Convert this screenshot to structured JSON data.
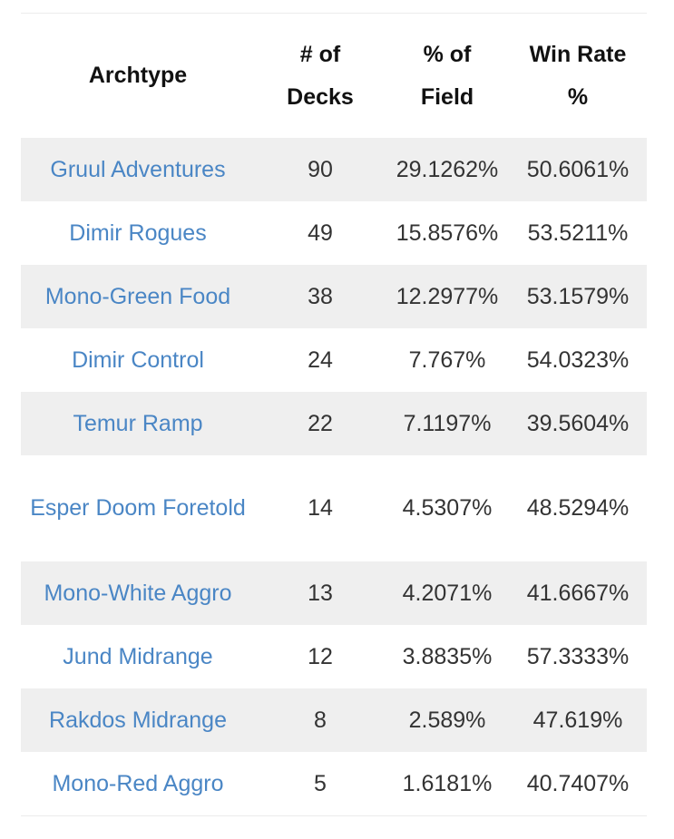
{
  "table": {
    "headers": {
      "archetype": "Archtype",
      "decks_line1": "# of",
      "decks_line2": "Decks",
      "field_line1": "% of",
      "field_line2": "Field",
      "winrate_line1": "Win Rate",
      "winrate_line2": "%"
    },
    "rows": [
      {
        "name": "Gruul Adventures",
        "decks": "90",
        "field": "29.1262%",
        "winrate": "50.6061%"
      },
      {
        "name": "Dimir Rogues",
        "decks": "49",
        "field": "15.8576%",
        "winrate": "53.5211%"
      },
      {
        "name": "Mono-Green Food",
        "decks": "38",
        "field": "12.2977%",
        "winrate": "53.1579%"
      },
      {
        "name": "Dimir Control",
        "decks": "24",
        "field": "7.767%",
        "winrate": "54.0323%"
      },
      {
        "name": "Temur Ramp",
        "decks": "22",
        "field": "7.1197%",
        "winrate": "39.5604%"
      },
      {
        "name": "Esper Doom Foretold",
        "decks": "14",
        "field": "4.5307%",
        "winrate": "48.5294%"
      },
      {
        "name": "Mono-White Aggro",
        "decks": "13",
        "field": "4.2071%",
        "winrate": "41.6667%"
      },
      {
        "name": "Jund Midrange",
        "decks": "12",
        "field": "3.8835%",
        "winrate": "57.3333%"
      },
      {
        "name": "Rakdos Midrange",
        "decks": "8",
        "field": "2.589%",
        "winrate": "47.619%"
      },
      {
        "name": "Mono-Red Aggro",
        "decks": "5",
        "field": "1.6181%",
        "winrate": "40.7407%"
      }
    ]
  },
  "colors": {
    "link": "#4a86c5",
    "stripe": "#efefef",
    "header_text": "#111111"
  }
}
